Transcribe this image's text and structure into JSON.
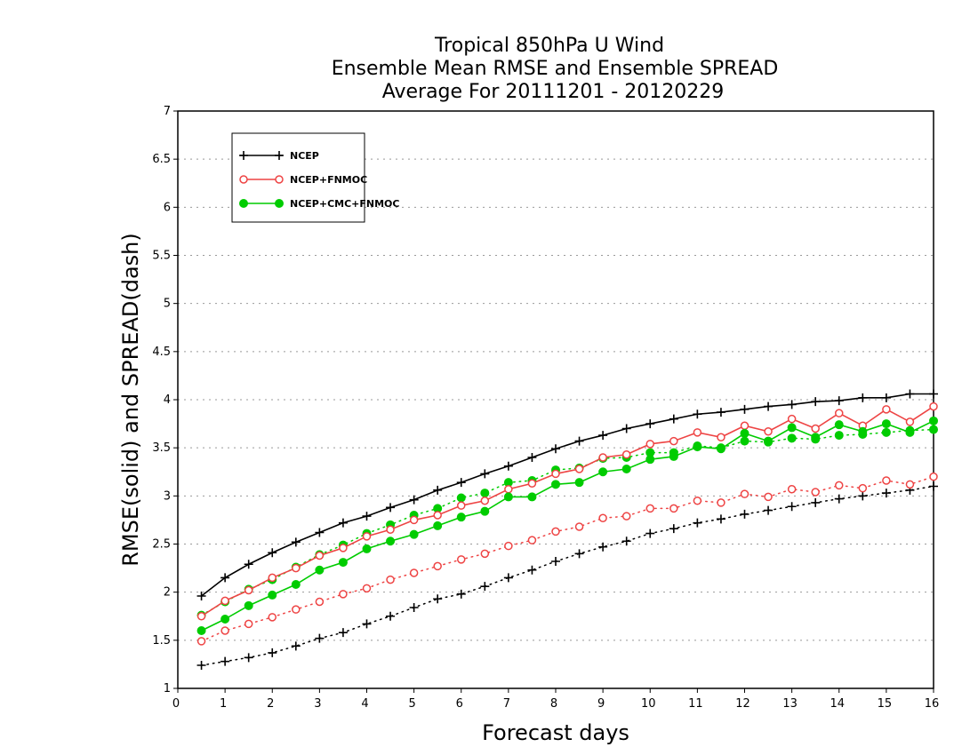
{
  "chart_data": {
    "type": "line",
    "title": [
      "Tropical 850hPa U Wind",
      "Ensemble Mean RMSE and Ensemble SPREAD",
      "Average For 20111201 - 20120229"
    ],
    "xlabel": "Forecast days",
    "ylabel": "RMSE(solid) and SPREAD(dash)",
    "xlim": [
      0,
      16
    ],
    "ylim": [
      1,
      7
    ],
    "xticks": [
      "0",
      "1",
      "2",
      "3",
      "4",
      "5",
      "6",
      "7",
      "8",
      "9",
      "10",
      "11",
      "12",
      "13",
      "14",
      "15",
      "16"
    ],
    "yticks": [
      "1",
      "1.5",
      "2",
      "2.5",
      "3",
      "3.5",
      "4",
      "4.5",
      "5",
      "5.5",
      "6",
      "6.5",
      "7"
    ],
    "grid": true,
    "legend_position": "top-left",
    "x": [
      0.5,
      1,
      1.5,
      2,
      2.5,
      3,
      3.5,
      4,
      4.5,
      5,
      5.5,
      6,
      6.5,
      7,
      7.5,
      8,
      8.5,
      9,
      9.5,
      10,
      10.5,
      11,
      11.5,
      12,
      12.5,
      13,
      13.5,
      14,
      14.5,
      15,
      15.5,
      16
    ],
    "series": [
      {
        "name": "NCEP",
        "color": "#000000",
        "marker": "plus",
        "rmse": [
          1.96,
          2.15,
          2.29,
          2.41,
          2.52,
          2.62,
          2.72,
          2.79,
          2.88,
          2.96,
          3.06,
          3.14,
          3.23,
          3.31,
          3.4,
          3.49,
          3.57,
          3.63,
          3.7,
          3.75,
          3.8,
          3.85,
          3.87,
          3.9,
          3.93,
          3.95,
          3.98,
          3.99,
          4.02,
          4.02,
          4.06,
          4.06
        ],
        "spread": [
          1.24,
          1.28,
          1.32,
          1.37,
          1.44,
          1.52,
          1.58,
          1.67,
          1.75,
          1.84,
          1.93,
          1.98,
          2.06,
          2.15,
          2.23,
          2.32,
          2.4,
          2.47,
          2.53,
          2.61,
          2.66,
          2.72,
          2.76,
          2.81,
          2.85,
          2.89,
          2.93,
          2.97,
          3.0,
          3.03,
          3.06,
          3.1
        ]
      },
      {
        "name": "NCEP+FNMOC",
        "color": "#ee4444",
        "marker": "open-circle",
        "rmse": [
          1.75,
          1.91,
          2.02,
          2.15,
          2.25,
          2.38,
          2.46,
          2.58,
          2.65,
          2.75,
          2.8,
          2.9,
          2.95,
          3.07,
          3.13,
          3.23,
          3.28,
          3.4,
          3.43,
          3.54,
          3.57,
          3.66,
          3.61,
          3.73,
          3.67,
          3.8,
          3.7,
          3.86,
          3.73,
          3.9,
          3.77,
          3.93
        ],
        "spread": [
          1.49,
          1.6,
          1.67,
          1.74,
          1.82,
          1.9,
          1.98,
          2.04,
          2.13,
          2.2,
          2.27,
          2.34,
          2.4,
          2.48,
          2.54,
          2.63,
          2.68,
          2.77,
          2.79,
          2.87,
          2.87,
          2.95,
          2.93,
          3.02,
          2.99,
          3.07,
          3.04,
          3.11,
          3.08,
          3.16,
          3.12,
          3.2
        ]
      },
      {
        "name": "NCEP+CMC+FNMOC",
        "color": "#00cc00",
        "marker": "filled-circle",
        "rmse": [
          1.6,
          1.72,
          1.86,
          1.97,
          2.08,
          2.23,
          2.31,
          2.45,
          2.53,
          2.6,
          2.69,
          2.78,
          2.84,
          2.99,
          2.99,
          3.12,
          3.14,
          3.25,
          3.28,
          3.38,
          3.41,
          3.51,
          3.49,
          3.65,
          3.57,
          3.71,
          3.61,
          3.74,
          3.67,
          3.75,
          3.66,
          3.78
        ],
        "spread": [
          1.76,
          1.9,
          2.03,
          2.13,
          2.26,
          2.39,
          2.49,
          2.61,
          2.7,
          2.8,
          2.87,
          2.98,
          3.03,
          3.14,
          3.16,
          3.27,
          3.29,
          3.39,
          3.4,
          3.45,
          3.45,
          3.52,
          3.5,
          3.57,
          3.56,
          3.6,
          3.59,
          3.63,
          3.64,
          3.66,
          3.68,
          3.69
        ]
      }
    ]
  }
}
